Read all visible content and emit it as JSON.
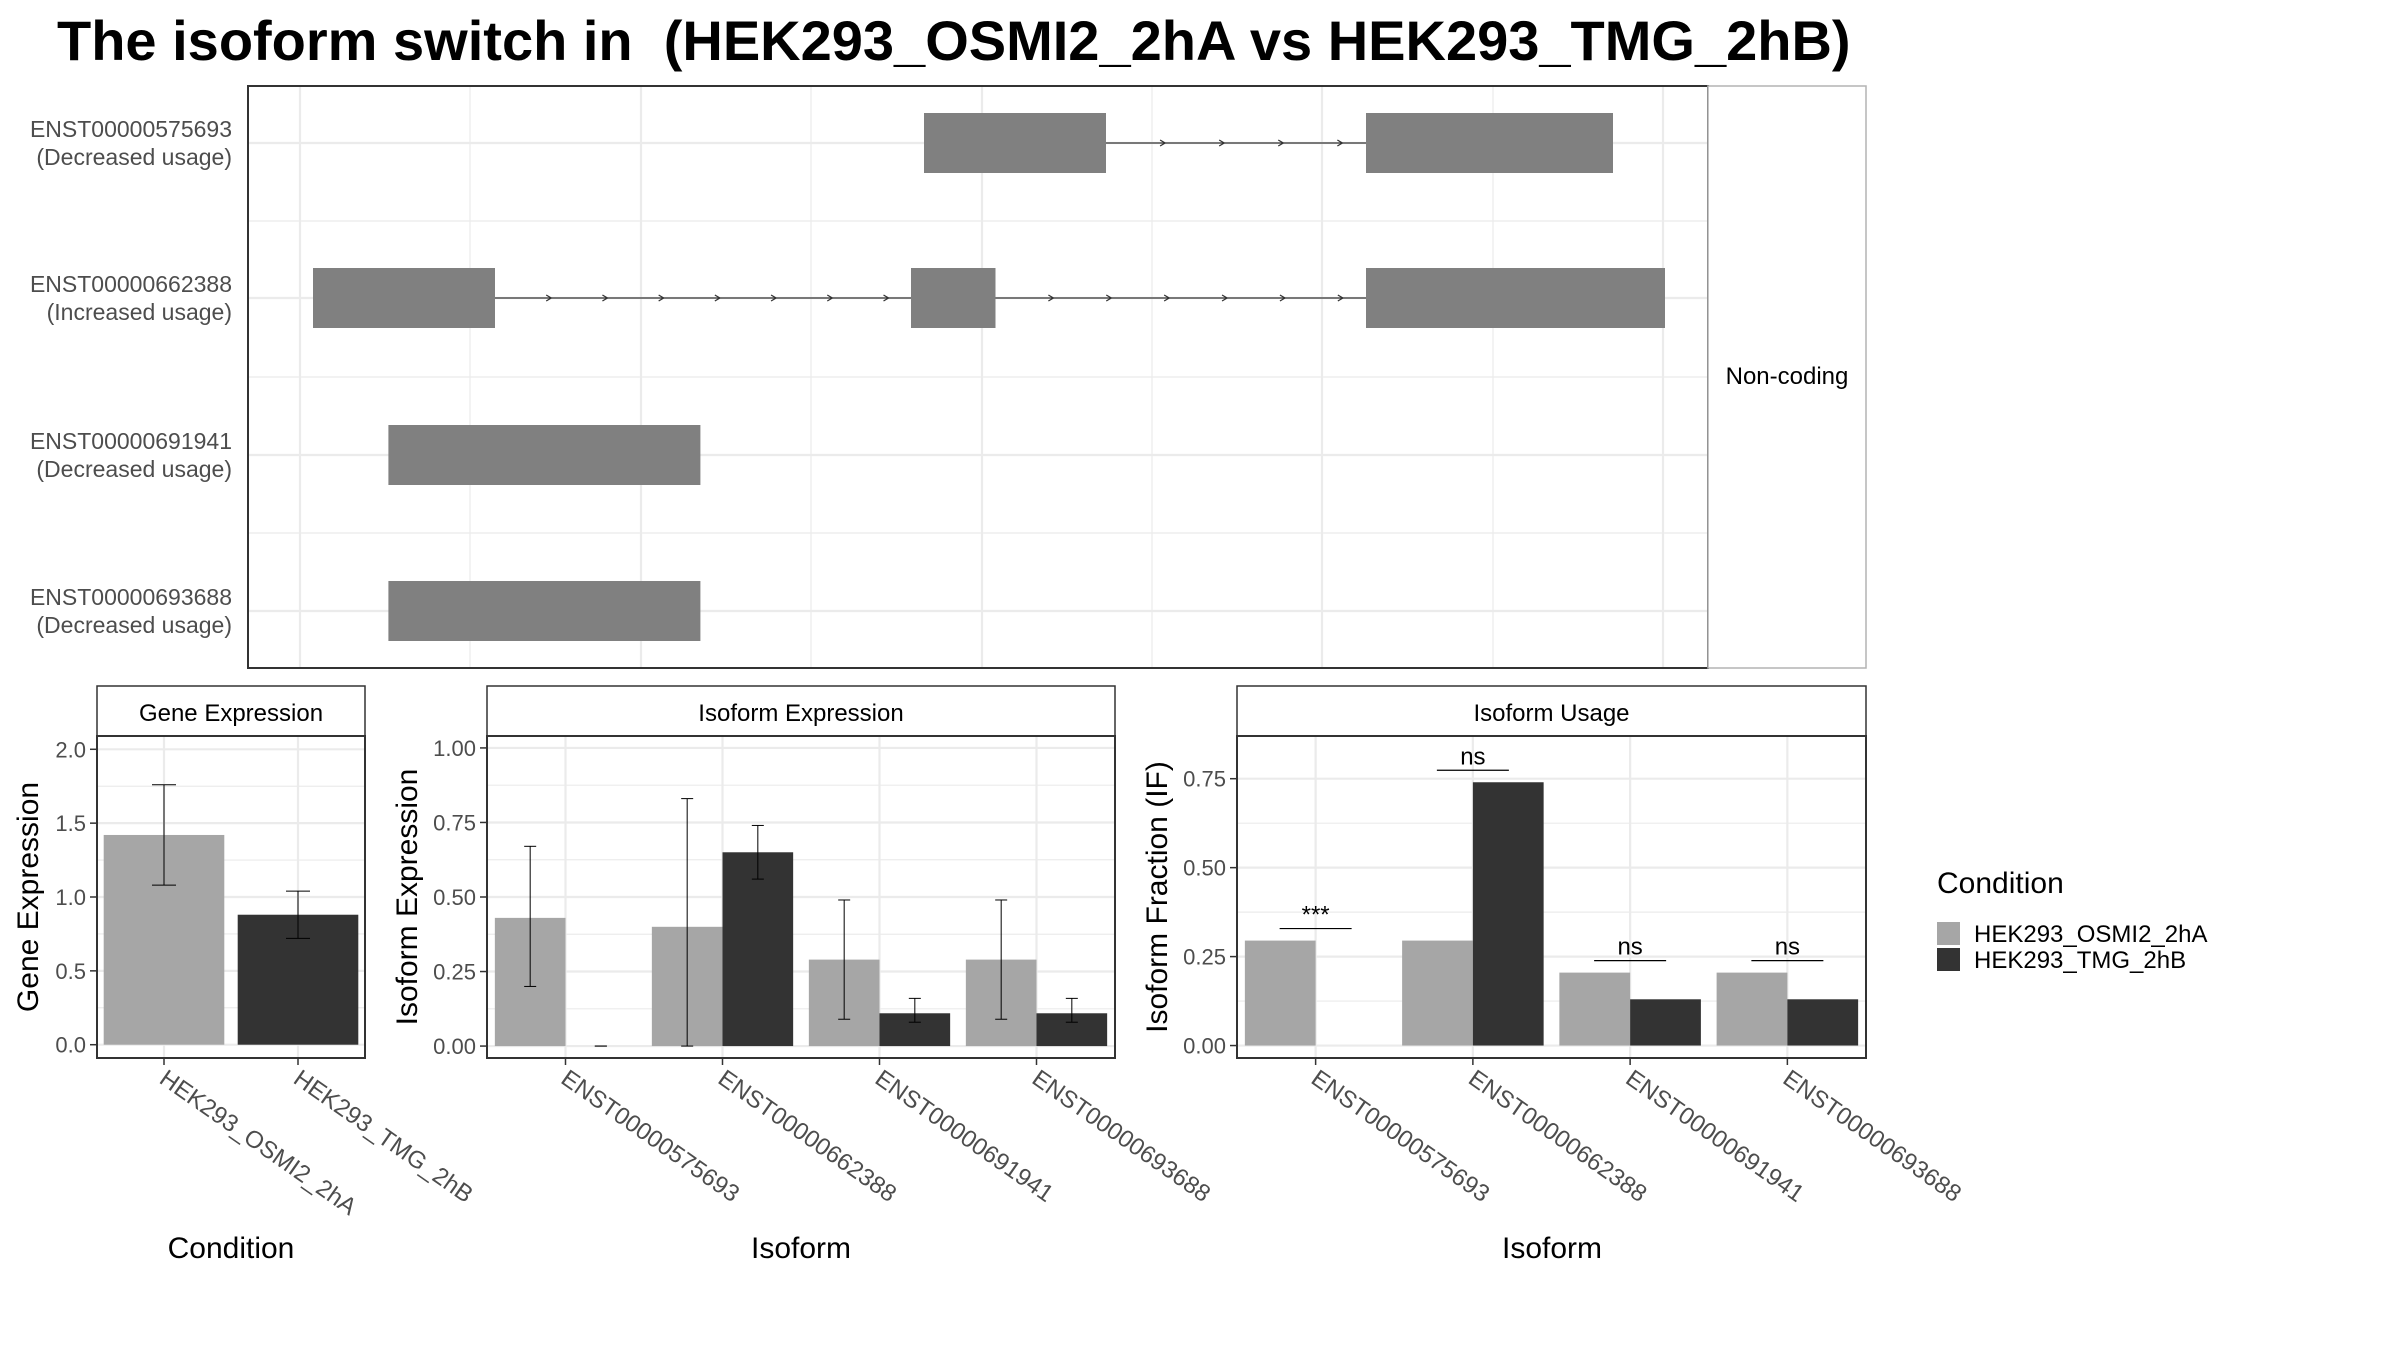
{
  "title": "The isoform switch in  (HEK293_OSMI2_2hA vs HEK293_TMG_2hB)",
  "colors": {
    "cond_a": "#a6a6a6",
    "cond_b": "#333333",
    "exon": "#808080",
    "grid": "#ebebeb",
    "panel_border": "#333333",
    "strip_fill": "#ffffff"
  },
  "chart_data": [
    {
      "type": "gene_structure",
      "panel_label": "Non-coding",
      "x_range": [
        0,
        1000
      ],
      "transcripts": [
        {
          "id": "ENST00000575693",
          "usage": "(Decreased usage)",
          "exons": [
            [
              480,
              620
            ],
            [
              820,
              1010
            ]
          ],
          "direction": "+"
        },
        {
          "id": "ENST00000662388",
          "usage": "(Increased usage)",
          "exons": [
            [
              10,
              150
            ],
            [
              470,
              535
            ],
            [
              820,
              1050
            ]
          ],
          "direction": "+"
        },
        {
          "id": "ENST00000691941",
          "usage": "(Decreased usage)",
          "exons": [
            [
              68,
              308
            ]
          ],
          "direction": "+"
        },
        {
          "id": "ENST00000693688",
          "usage": "(Decreased usage)",
          "exons": [
            [
              68,
              308
            ]
          ],
          "direction": "+"
        }
      ]
    },
    {
      "type": "bar",
      "strip": "Gene Expression",
      "xlabel": "Condition",
      "ylabel": "Gene Expression",
      "ylim": [
        -0.09,
        2.09
      ],
      "yticks": [
        "0.0",
        "0.5",
        "1.0",
        "1.5",
        "2.0"
      ],
      "categories": [
        "HEK293_OSMI2_2hA",
        "HEK293_TMG_2hB"
      ],
      "values": [
        1.42,
        0.88
      ],
      "error_low": [
        1.08,
        0.72
      ],
      "error_high": [
        1.76,
        1.04
      ]
    },
    {
      "type": "bar",
      "strip": "Isoform Expression",
      "xlabel": "Isoform",
      "ylabel": "Isoform Expression",
      "ylim": [
        -0.04,
        1.04
      ],
      "yticks": [
        "0.00",
        "0.25",
        "0.50",
        "0.75",
        "1.00"
      ],
      "categories": [
        "ENST00000575693",
        "ENST00000662388",
        "ENST00000691941",
        "ENST00000693688"
      ],
      "series": [
        {
          "name": "HEK293_OSMI2_2hA",
          "values": [
            0.43,
            0.4,
            0.29,
            0.29
          ],
          "error_low": [
            0.2,
            0.0,
            0.09,
            0.09
          ],
          "error_high": [
            0.67,
            0.83,
            0.49,
            0.49
          ]
        },
        {
          "name": "HEK293_TMG_2hB",
          "values": [
            0.0,
            0.65,
            0.11,
            0.11
          ],
          "error_low": [
            0.0,
            0.56,
            0.08,
            0.08
          ],
          "error_high": [
            0.0,
            0.74,
            0.16,
            0.16
          ]
        }
      ]
    },
    {
      "type": "bar",
      "strip": "Isoform Usage",
      "xlabel": "Isoform",
      "ylabel": "Isoform Fraction (IF)",
      "ylim": [
        -0.035,
        0.87
      ],
      "yticks": [
        "0.00",
        "0.25",
        "0.50",
        "0.75"
      ],
      "categories": [
        "ENST00000575693",
        "ENST00000662388",
        "ENST00000691941",
        "ENST00000693688"
      ],
      "series": [
        {
          "name": "HEK293_OSMI2_2hA",
          "values": [
            0.295,
            0.295,
            0.205,
            0.205
          ]
        },
        {
          "name": "HEK293_TMG_2hB",
          "values": [
            0.0,
            0.74,
            0.13,
            0.13
          ]
        }
      ],
      "significance": [
        "***",
        "ns",
        "ns",
        "ns"
      ]
    }
  ],
  "legend": {
    "title": "Condition",
    "items": [
      "HEK293_OSMI2_2hA",
      "HEK293_TMG_2hB"
    ]
  }
}
